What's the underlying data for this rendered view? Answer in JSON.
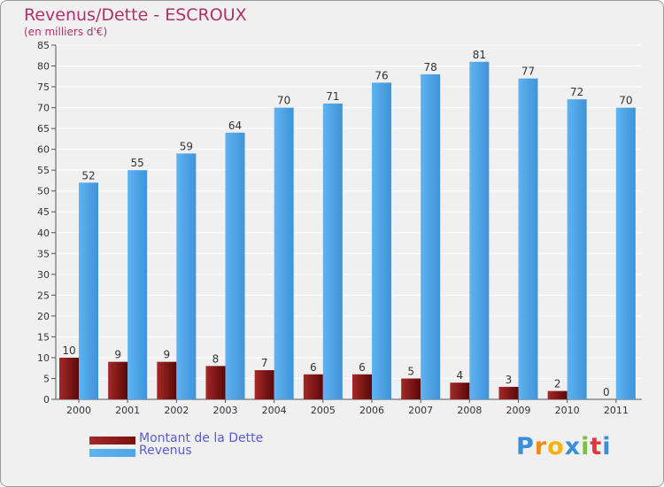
{
  "chart_data": {
    "type": "bar",
    "title": "Revenus/Dette - ESCROUX",
    "subtitle": "(en milliers d'€)",
    "xlabel": "",
    "ylabel": "",
    "ylim": [
      0,
      85
    ],
    "ytick_step": 5,
    "grid": true,
    "categories": [
      "2000",
      "2001",
      "2002",
      "2003",
      "2004",
      "2005",
      "2006",
      "2007",
      "2008",
      "2009",
      "2010",
      "2011"
    ],
    "series": [
      {
        "name": "Montant de la Dette",
        "color": "#7a1010",
        "values": [
          10,
          9,
          9,
          8,
          7,
          6,
          6,
          5,
          4,
          3,
          2,
          0
        ]
      },
      {
        "name": "Revenus",
        "color": "#4da6e8",
        "values": [
          52,
          55,
          59,
          64,
          70,
          71,
          76,
          78,
          81,
          77,
          72,
          70
        ]
      }
    ],
    "legend_position": "bottom-left"
  },
  "brand": {
    "letters": [
      "P",
      "r",
      "o",
      "x",
      "i",
      "t",
      "i"
    ],
    "colors": [
      "#3a8fd8",
      "#f08a1c",
      "#f5b400",
      "#3a8fd8",
      "#7ac143",
      "#e2353f",
      "#3a8fd8"
    ]
  }
}
